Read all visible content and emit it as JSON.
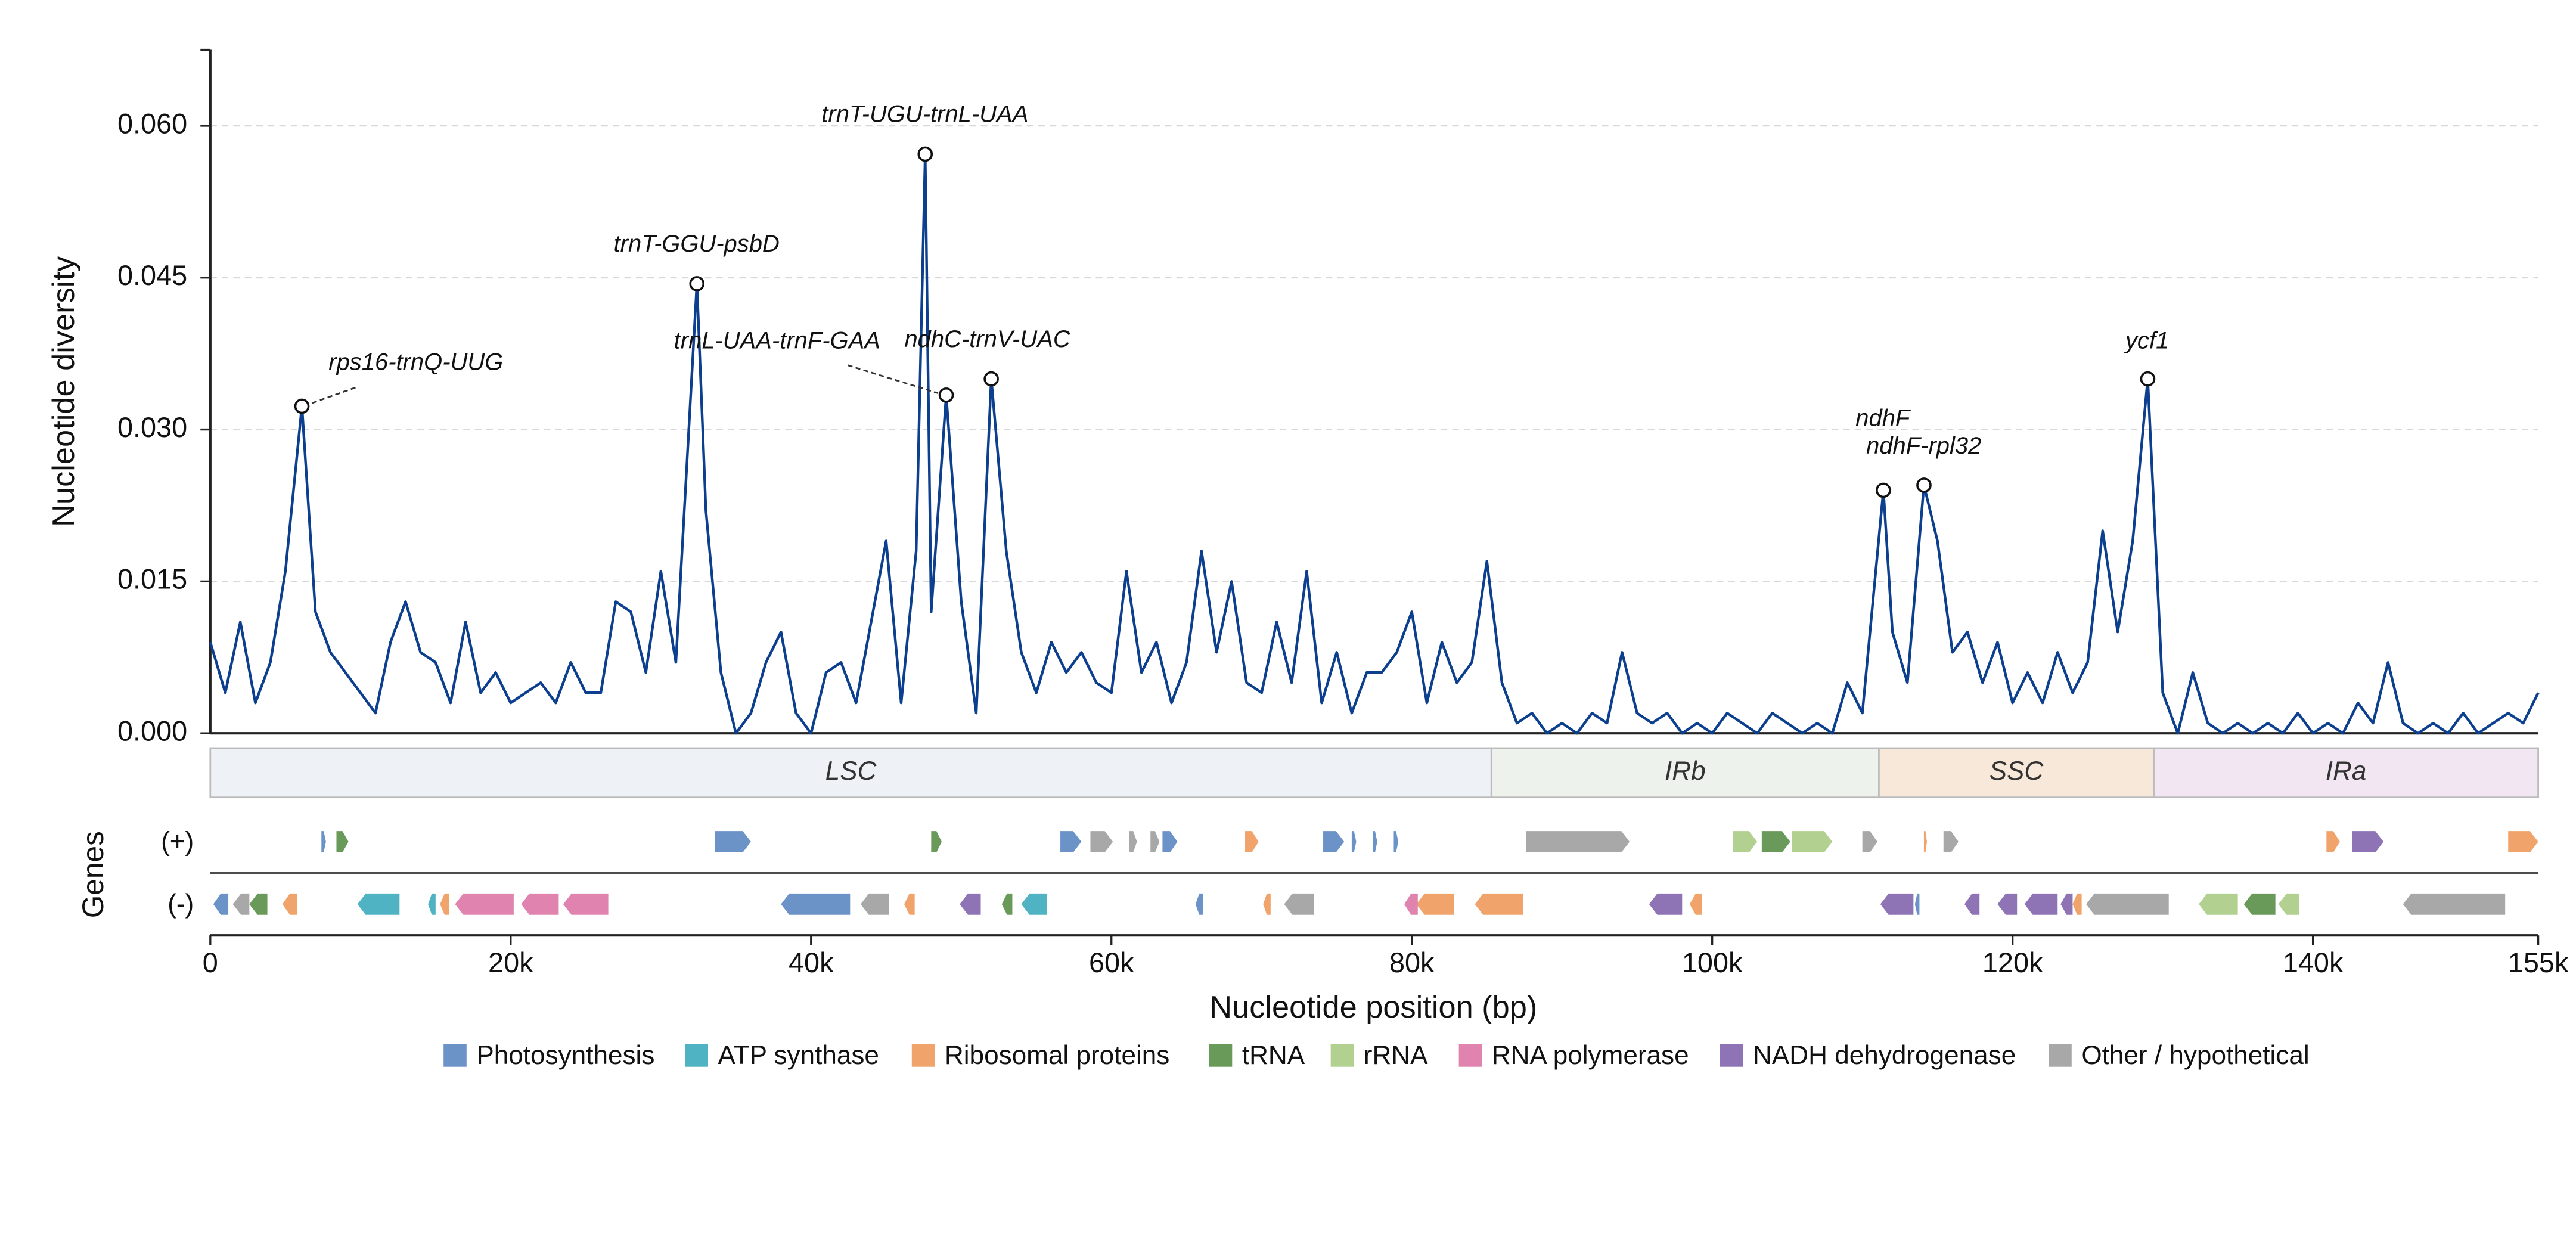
{
  "chart_data": {
    "type": "line",
    "y_label": "Nucleotide diversity",
    "x_label": "Nucleotide position (bp)",
    "genes_label": "Genes",
    "plus_label": "(+)",
    "minus_label": "(-)",
    "xlim": [
      0,
      155000
    ],
    "ylim": [
      0,
      0.0675
    ],
    "xticks": [
      0,
      {
        "value": 20000,
        "label": "20k"
      },
      {
        "value": 40000,
        "label": "40k"
      },
      {
        "value": 60000,
        "label": "60k"
      },
      {
        "value": 80000,
        "label": "80k"
      },
      {
        "value": 100000,
        "label": "100k"
      },
      {
        "value": 120000,
        "label": "120k"
      },
      {
        "value": 140000,
        "label": "140k"
      },
      {
        "value": 155000,
        "label": "155k"
      }
    ],
    "yticks": [
      {
        "value": 0,
        "label": "0.000"
      },
      {
        "value": 0.015,
        "label": "0.015"
      },
      {
        "value": 0.03,
        "label": "0.030"
      },
      {
        "value": 0.045,
        "label": "0.045"
      },
      {
        "value": 0.06,
        "label": "0.060"
      }
    ],
    "grid": true,
    "series": [
      {
        "color": "#0d3f8f",
        "x": [
          0,
          1000,
          2000,
          3000,
          4000,
          5000,
          6100,
          7000,
          8000,
          9000,
          10000,
          11000,
          12000,
          13000,
          14000,
          15000,
          16000,
          17000,
          18000,
          19000,
          20000,
          21000,
          22000,
          23000,
          24000,
          25000,
          26000,
          27000,
          28000,
          29000,
          30000,
          31000,
          32400,
          33000,
          34000,
          35000,
          36000,
          37000,
          38000,
          39000,
          40000,
          41000,
          42000,
          43000,
          44000,
          45000,
          46000,
          47000,
          47600,
          48000,
          49000,
          50000,
          51000,
          52000,
          53000,
          54000,
          55000,
          56000,
          57000,
          58000,
          59000,
          60000,
          61000,
          62000,
          63000,
          64000,
          65000,
          66000,
          67000,
          68000,
          69000,
          70000,
          71000,
          72000,
          73000,
          74000,
          75000,
          76000,
          77000,
          78000,
          79000,
          80000,
          81000,
          82000,
          83000,
          84000,
          85000,
          86000,
          87000,
          88000,
          89000,
          90000,
          91000,
          92000,
          93000,
          94000,
          95000,
          96000,
          97000,
          98000,
          99000,
          100000,
          101000,
          102000,
          103000,
          104000,
          105000,
          106000,
          107000,
          108000,
          109000,
          110000,
          111400,
          112000,
          113000,
          114100,
          115000,
          116000,
          117000,
          118000,
          119000,
          120000,
          121000,
          122000,
          123000,
          124000,
          125000,
          126000,
          127000,
          128000,
          129000,
          130000,
          131000,
          132000,
          133000,
          134000,
          135000,
          136000,
          137000,
          138000,
          139000,
          140000,
          141000,
          142000,
          143000,
          144000,
          145000,
          146000,
          147000,
          148000,
          149000,
          150000,
          151000,
          152000,
          153000,
          154000,
          155000
        ],
        "values": [
          0.009,
          0.004,
          0.011,
          0.003,
          0.007,
          0.016,
          0.0323,
          0.012,
          0.008,
          0.006,
          0.004,
          0.002,
          0.009,
          0.013,
          0.008,
          0.007,
          0.003,
          0.011,
          0.004,
          0.006,
          0.003,
          0.004,
          0.005,
          0.003,
          0.007,
          0.004,
          0.004,
          0.013,
          0.012,
          0.006,
          0.016,
          0.007,
          0.0444,
          0.022,
          0.006,
          0,
          0.002,
          0.007,
          0.01,
          0.002,
          0,
          0.006,
          0.007,
          0.003,
          0.011,
          0.019,
          0.003,
          0.018,
          0.0572,
          0.012,
          0.0334,
          0.013,
          0.002,
          0.035,
          0.018,
          0.008,
          0.004,
          0.009,
          0.006,
          0.008,
          0.005,
          0.004,
          0.016,
          0.006,
          0.009,
          0.003,
          0.007,
          0.018,
          0.008,
          0.015,
          0.005,
          0.004,
          0.011,
          0.005,
          0.016,
          0.003,
          0.008,
          0.002,
          0.006,
          0.006,
          0.008,
          0.012,
          0.003,
          0.009,
          0.005,
          0.007,
          0.017,
          0.005,
          0.001,
          0.002,
          0,
          0.001,
          0,
          0.002,
          0.001,
          0.008,
          0.002,
          0.001,
          0.002,
          0,
          0.001,
          0,
          0.002,
          0.001,
          0,
          0.002,
          0.001,
          0,
          0.001,
          0,
          0.005,
          0.002,
          0.024,
          0.01,
          0.005,
          0.0245,
          0.019,
          0.008,
          0.01,
          0.005,
          0.009,
          0.003,
          0.006,
          0.003,
          0.008,
          0.004,
          0.007,
          0.02,
          0.01,
          0.019,
          0.035,
          0.004,
          0,
          0.006,
          0.001,
          0,
          0.001,
          0,
          0.001,
          0,
          0.002,
          0,
          0.001,
          0,
          0.003,
          0.001,
          0.007,
          0.001,
          0,
          0.001,
          0,
          0.002,
          0,
          0.001,
          0.002,
          0.001,
          0.004
        ]
      }
    ],
    "annotations": [
      {
        "text": "rps16-trnQ-UUG",
        "x": 6100,
        "y": 0.0323
      },
      {
        "text": "trnT-GGU-psbD",
        "x": 32400,
        "y": 0.0444
      },
      {
        "text": "trnT-UGU-trnL-UAA",
        "x": 47600,
        "y": 0.0572
      },
      {
        "text": "trnL-UAA-trnF-GAA",
        "x": 49000,
        "y": 0.0334
      },
      {
        "text": "ndhC-trnV-UAC",
        "x": 52000,
        "y": 0.035
      },
      {
        "text": "ndhF",
        "x": 111400,
        "y": 0.024
      },
      {
        "text": "ndhF-rpl32",
        "x": 114100,
        "y": 0.0245
      },
      {
        "text": "ycf1",
        "x": 129000,
        "y": 0.035
      }
    ],
    "regions": [
      {
        "name": "LSC",
        "start": 0,
        "end": 85300,
        "color": "#eef2f6"
      },
      {
        "name": "IRb",
        "start": 85300,
        "end": 111100,
        "color": "#edf3ec"
      },
      {
        "name": "SSC",
        "start": 111100,
        "end": 129400,
        "color": "#f7e8da"
      },
      {
        "name": "IRa",
        "start": 129400,
        "end": 155000,
        "color": "#f1e6f1"
      }
    ],
    "gene_tracks": [
      {
        "name": "Photosynthesis",
        "color": "#6b93c8",
        "plus": [
          [
            7400,
            7700
          ],
          [
            33600,
            36000
          ],
          [
            56600,
            58000
          ],
          [
            63400,
            64400
          ],
          [
            74100,
            75500
          ],
          [
            76000,
            76300
          ],
          [
            77400,
            77700
          ],
          [
            78800,
            79100
          ]
        ],
        "minus": [
          [
            200,
            1200
          ],
          [
            38000,
            42600
          ],
          [
            65600,
            66100
          ],
          [
            113500,
            113800
          ]
        ]
      },
      {
        "name": "ATP synthase",
        "color": "#4fb3c3",
        "plus": [],
        "minus": [
          [
            9800,
            12600
          ],
          [
            14500,
            15000
          ],
          [
            54000,
            55700
          ]
        ]
      },
      {
        "name": "Ribosomal proteins",
        "color": "#f0a46c",
        "plus": [
          [
            68900,
            69800
          ],
          [
            114100,
            114300
          ],
          [
            140900,
            141800
          ],
          [
            153000,
            155000
          ]
        ],
        "minus": [
          [
            4800,
            5800
          ],
          [
            15300,
            15900
          ],
          [
            46200,
            46900
          ],
          [
            70100,
            70600
          ],
          [
            80300,
            82800
          ],
          [
            84200,
            87400
          ],
          [
            98500,
            99300
          ],
          [
            124000,
            124600
          ]
        ]
      },
      {
        "name": "tRNA",
        "color": "#6a9a5a",
        "plus": [
          [
            8400,
            9200
          ],
          [
            48000,
            48700
          ],
          [
            103300,
            105200
          ]
        ],
        "minus": [
          [
            2600,
            3800
          ],
          [
            52700,
            53400
          ],
          [
            135400,
            137500
          ]
        ]
      },
      {
        "name": "rRNA",
        "color": "#b2d08f",
        "plus": [
          [
            101400,
            103000
          ],
          [
            105300,
            108000
          ]
        ],
        "minus": [
          [
            132400,
            135000
          ],
          [
            137700,
            139100
          ]
        ]
      },
      {
        "name": "RNA polymerase",
        "color": "#e083ae",
        "plus": [],
        "minus": [
          [
            16300,
            20200
          ],
          [
            20700,
            23200
          ],
          [
            23500,
            26500
          ],
          [
            79500,
            80400
          ]
        ]
      },
      {
        "name": "NADH dehydrogenase",
        "color": "#8e73b5",
        "plus": [
          [
            142600,
            144700
          ]
        ],
        "minus": [
          [
            49900,
            51300
          ],
          [
            95800,
            98000
          ],
          [
            111200,
            113400
          ],
          [
            116800,
            117800
          ],
          [
            119000,
            120300
          ],
          [
            120800,
            123000
          ],
          [
            123200,
            124000
          ]
        ]
      },
      {
        "name": "Other / hypothetical",
        "color": "#a8a8a8",
        "plus": [
          [
            58600,
            60100
          ],
          [
            61200,
            61700
          ],
          [
            62600,
            63200
          ],
          [
            87600,
            94500
          ],
          [
            110000,
            111000
          ],
          [
            115400,
            116400
          ]
        ],
        "minus": [
          [
            1500,
            2600
          ],
          [
            43300,
            45200
          ],
          [
            71500,
            73500
          ],
          [
            124900,
            130400
          ],
          [
            146000,
            152800
          ]
        ]
      }
    ]
  }
}
